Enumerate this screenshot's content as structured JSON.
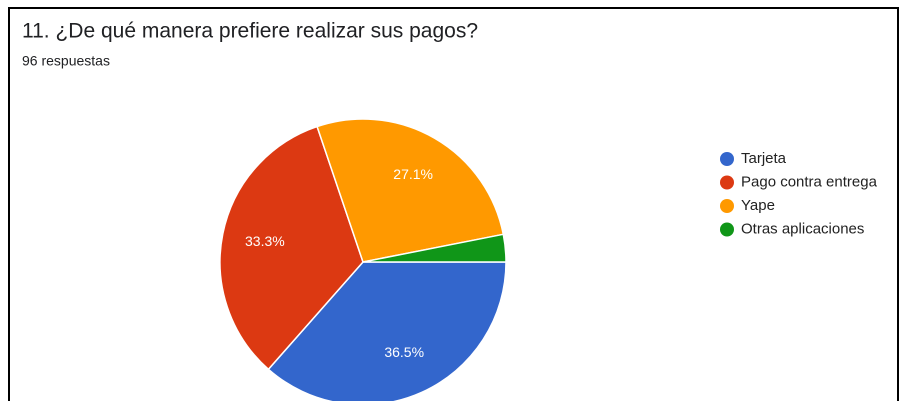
{
  "chart_data": {
    "type": "pie",
    "title": "11. ¿De qué manera prefiere realizar sus pagos?",
    "subtitle": "96 respuestas",
    "categories": [
      "Tarjeta",
      "Pago contra entrega",
      "Yape",
      "Otras aplicaciones"
    ],
    "values": [
      36.5,
      33.3,
      27.1,
      3.1
    ],
    "value_labels": [
      "36.5%",
      "33.3%",
      "27.1%",
      null
    ],
    "colors": [
      "#3366cc",
      "#dc3912",
      "#ff9900",
      "#109618"
    ],
    "legend": "right"
  }
}
